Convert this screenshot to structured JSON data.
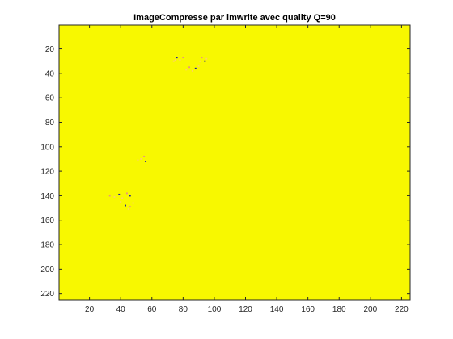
{
  "chart_data": {
    "type": "heatmap",
    "title": "ImageCompresse par imwrite avec quality Q=90",
    "xlabel": "",
    "ylabel": "",
    "xlim": [
      0.5,
      225.5
    ],
    "ylim": [
      0.5,
      225.5
    ],
    "y_direction": "reversed",
    "x_ticks": [
      20,
      40,
      60,
      80,
      100,
      120,
      140,
      160,
      180,
      200,
      220
    ],
    "y_ticks": [
      20,
      40,
      60,
      80,
      100,
      120,
      140,
      160,
      180,
      200,
      220
    ],
    "grid": false,
    "colorbar": false,
    "colors": {
      "background": "#f8f800",
      "axis": "#262626",
      "artifact_light": "#ffd166",
      "artifact_mid": "#e9967a",
      "artifact_dark": "#1a1aa0"
    },
    "background_value": 1,
    "anomalies": [
      {
        "x": 76,
        "y": 27,
        "level": "dark"
      },
      {
        "x": 75,
        "y": 29,
        "level": "light"
      },
      {
        "x": 78,
        "y": 29,
        "level": "light"
      },
      {
        "x": 80,
        "y": 27,
        "level": "mid"
      },
      {
        "x": 74,
        "y": 30,
        "level": "light"
      },
      {
        "x": 92,
        "y": 27,
        "level": "mid"
      },
      {
        "x": 94,
        "y": 30,
        "level": "dark"
      },
      {
        "x": 91,
        "y": 30,
        "level": "light"
      },
      {
        "x": 95,
        "y": 28,
        "level": "light"
      },
      {
        "x": 88,
        "y": 36,
        "level": "dark"
      },
      {
        "x": 86,
        "y": 38,
        "level": "light"
      },
      {
        "x": 84,
        "y": 35,
        "level": "mid"
      },
      {
        "x": 90,
        "y": 34,
        "level": "light"
      },
      {
        "x": 82,
        "y": 37,
        "level": "light"
      },
      {
        "x": 56,
        "y": 112,
        "level": "dark"
      },
      {
        "x": 53,
        "y": 110,
        "level": "light"
      },
      {
        "x": 55,
        "y": 108,
        "level": "mid"
      },
      {
        "x": 51,
        "y": 111,
        "level": "light"
      },
      {
        "x": 39,
        "y": 139,
        "level": "dark"
      },
      {
        "x": 44,
        "y": 138,
        "level": "mid"
      },
      {
        "x": 46,
        "y": 140,
        "level": "dark"
      },
      {
        "x": 36,
        "y": 141,
        "level": "light"
      },
      {
        "x": 41,
        "y": 142,
        "level": "light"
      },
      {
        "x": 43,
        "y": 148,
        "level": "dark"
      },
      {
        "x": 46,
        "y": 149,
        "level": "mid"
      },
      {
        "x": 40,
        "y": 145,
        "level": "light"
      },
      {
        "x": 48,
        "y": 146,
        "level": "light"
      },
      {
        "x": 33,
        "y": 140,
        "level": "mid"
      },
      {
        "x": 45,
        "y": 151,
        "level": "light"
      }
    ]
  }
}
